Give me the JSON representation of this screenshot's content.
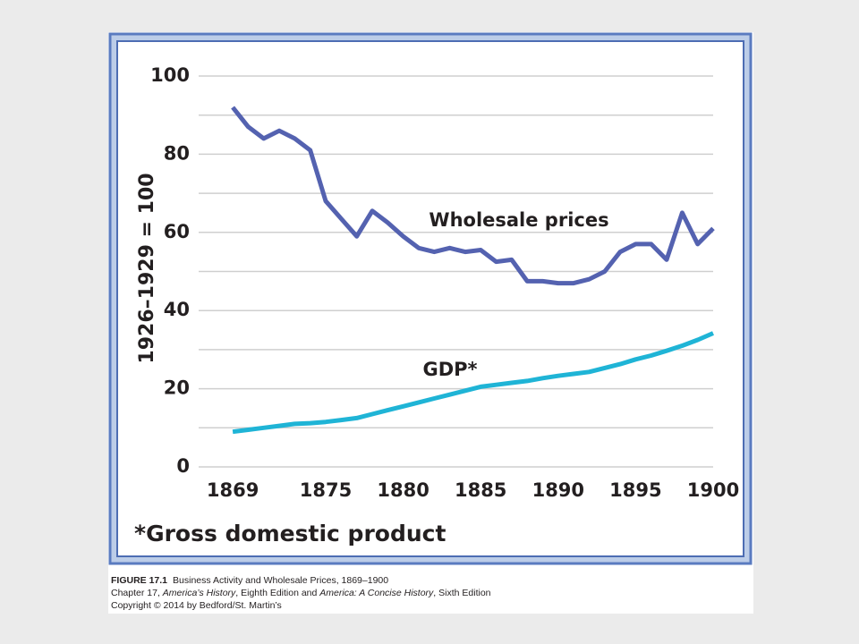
{
  "chart_data": {
    "type": "line",
    "ylabel": "1926–1929 = 100",
    "footnote": "*Gross domestic product",
    "x": [
      1869,
      1870,
      1871,
      1872,
      1873,
      1874,
      1875,
      1876,
      1877,
      1878,
      1879,
      1880,
      1881,
      1882,
      1883,
      1884,
      1885,
      1886,
      1887,
      1888,
      1889,
      1890,
      1891,
      1892,
      1893,
      1894,
      1895,
      1896,
      1897,
      1898,
      1899,
      1900
    ],
    "series": [
      {
        "name": "Wholesale prices",
        "color": "#5462b0",
        "values": [
          92,
          87,
          84,
          86,
          84,
          81,
          68,
          63.5,
          59,
          65.5,
          62.5,
          59,
          56,
          55,
          56,
          55,
          55.5,
          52.5,
          53,
          47.5,
          47.5,
          47,
          47,
          48,
          50,
          55,
          57,
          57,
          53,
          65,
          57,
          61
        ]
      },
      {
        "name": "GDP*",
        "color": "#1fb4d6",
        "values": [
          9,
          9.5,
          10,
          10.5,
          11,
          11.2,
          11.5,
          12,
          12.5,
          13.5,
          14.5,
          15.5,
          16.5,
          17.5,
          18.5,
          19.5,
          20.5,
          21,
          21.5,
          22,
          22.7,
          23.3,
          23.8,
          24.3,
          25.3,
          26.3,
          27.5,
          28.5,
          29.7,
          31,
          32.5,
          34.2
        ]
      }
    ],
    "xlim": [
      1866.8,
      1900
    ],
    "xticks": [
      1869,
      1875,
      1880,
      1885,
      1890,
      1895,
      1900
    ],
    "ylim": [
      0,
      100
    ],
    "yticks": [
      0,
      20,
      40,
      60,
      80,
      100
    ],
    "minor_yticks": [
      10,
      30,
      50,
      70,
      90
    ],
    "grid": true
  },
  "caption": {
    "figure": "FIGURE 17.1",
    "title": "Business Activity and Wholesale Prices, 1869–1900",
    "line2": [
      "Chapter 17, ",
      "America’s History",
      ", Eighth Edition and ",
      "America: A Concise History",
      ", Sixth Edition"
    ],
    "line3": "Copyright © 2014 by Bedford/St. Martin’s"
  }
}
